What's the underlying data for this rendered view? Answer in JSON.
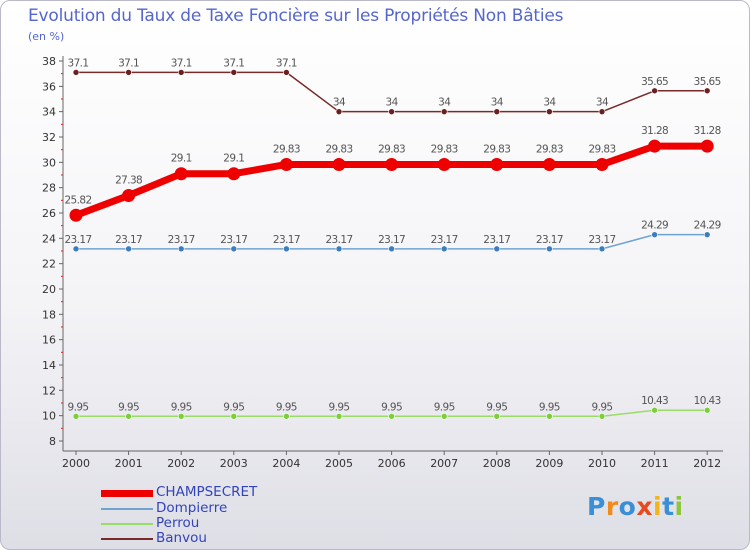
{
  "chart_data": {
    "type": "line",
    "title": "Evolution du Taux de Taxe Foncière sur les Propriétés Non Bâties",
    "ylabel": "(en %)",
    "xlabel": "",
    "categories": [
      "2000",
      "2001",
      "2002",
      "2003",
      "2004",
      "2005",
      "2006",
      "2007",
      "2008",
      "2009",
      "2010",
      "2011",
      "2012"
    ],
    "ylim": [
      8,
      38
    ],
    "yticks": [
      8,
      10,
      12,
      14,
      16,
      18,
      20,
      22,
      24,
      26,
      28,
      30,
      32,
      34,
      36,
      38
    ],
    "grid": false,
    "legend_position": "bottom-left",
    "series": [
      {
        "name": "CHAMPSECRET",
        "color": "#ee0000",
        "values": [
          25.82,
          27.38,
          29.1,
          29.1,
          29.83,
          29.83,
          29.83,
          29.83,
          29.83,
          29.83,
          29.83,
          31.28,
          31.28
        ],
        "labels": [
          "25.82",
          "27.38",
          "29.1",
          "29.1",
          "29.83",
          "29.83",
          "29.83",
          "29.83",
          "29.83",
          "29.83",
          "29.83",
          "31.28",
          "31.28"
        ]
      },
      {
        "name": "Dompierre",
        "color": "#6fa3d0",
        "values": [
          23.17,
          23.17,
          23.17,
          23.17,
          23.17,
          23.17,
          23.17,
          23.17,
          23.17,
          23.17,
          23.17,
          24.29,
          24.29
        ],
        "labels": [
          "23.17",
          "23.17",
          "23.17",
          "23.17",
          "23.17",
          "23.17",
          "23.17",
          "23.17",
          "23.17",
          "23.17",
          "23.17",
          "24.29",
          "24.29"
        ]
      },
      {
        "name": "Perrou",
        "color": "#99dd66",
        "values": [
          9.95,
          9.95,
          9.95,
          9.95,
          9.95,
          9.95,
          9.95,
          9.95,
          9.95,
          9.95,
          9.95,
          10.43,
          10.43
        ],
        "labels": [
          "9.95",
          "9.95",
          "9.95",
          "9.95",
          "9.95",
          "9.95",
          "9.95",
          "9.95",
          "9.95",
          "9.95",
          "9.95",
          "10.43",
          "10.43"
        ]
      },
      {
        "name": "Banvou",
        "color": "#7a2a2a",
        "values": [
          37.1,
          37.1,
          37.1,
          37.1,
          37.1,
          34,
          34,
          34,
          34,
          34,
          34,
          35.65,
          35.65
        ],
        "labels": [
          "37.1",
          "37.1",
          "37.1",
          "37.1",
          "37.1",
          "34",
          "34",
          "34",
          "34",
          "34",
          "34",
          "35.65",
          "35.65"
        ]
      }
    ]
  },
  "logo": {
    "text": "Proxiti"
  }
}
